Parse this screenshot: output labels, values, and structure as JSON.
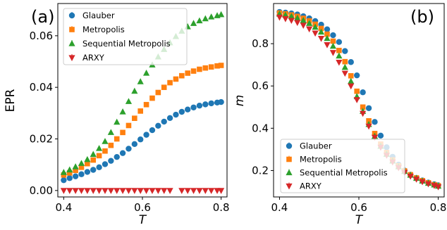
{
  "chart_data": [
    {
      "panel_label": "(a)",
      "type": "scatter",
      "xlabel": "T",
      "ylabel": "EPR",
      "xlim": [
        0.385,
        0.815
      ],
      "ylim": [
        -0.0025,
        0.0725
      ],
      "xticks": [
        0.4,
        0.6,
        0.8
      ],
      "xtick_labels": [
        "0.4",
        "0.6",
        "0.8"
      ],
      "yticks": [
        0.0,
        0.02,
        0.04,
        0.06
      ],
      "ytick_labels": [
        "0.00",
        "0.02",
        "0.04",
        "0.06"
      ],
      "grid": false,
      "legend": "top-left",
      "x": [
        0.4,
        0.415,
        0.43,
        0.445,
        0.46,
        0.475,
        0.49,
        0.505,
        0.52,
        0.535,
        0.55,
        0.565,
        0.58,
        0.595,
        0.61,
        0.625,
        0.64,
        0.655,
        0.67,
        0.685,
        0.7,
        0.715,
        0.73,
        0.745,
        0.76,
        0.775,
        0.79,
        0.8
      ],
      "series": [
        {
          "name": "Glauber",
          "color": "#1f77b4",
          "marker": "circle",
          "values": [
            0.004,
            0.0048,
            0.0055,
            0.0063,
            0.0072,
            0.008,
            0.009,
            0.0102,
            0.0115,
            0.013,
            0.0145,
            0.0162,
            0.018,
            0.0198,
            0.0216,
            0.0234,
            0.0251,
            0.0267,
            0.0281,
            0.0294,
            0.0305,
            0.0314,
            0.0322,
            0.0329,
            0.0334,
            0.0338,
            0.0341,
            0.0343
          ]
        },
        {
          "name": "Metropolis",
          "color": "#ff7f0e",
          "marker": "square",
          "values": [
            0.006,
            0.0068,
            0.0078,
            0.009,
            0.0104,
            0.0118,
            0.0135,
            0.0153,
            0.0175,
            0.02,
            0.0225,
            0.0252,
            0.028,
            0.0308,
            0.0333,
            0.0358,
            0.038,
            0.04,
            0.0418,
            0.0432,
            0.0445,
            0.0455,
            0.0463,
            0.047,
            0.0475,
            0.0479,
            0.0483,
            0.0485
          ]
        },
        {
          "name": "Sequential Metropolis",
          "color": "#2ca02c",
          "marker": "triangle-up",
          "values": [
            0.007,
            0.008,
            0.0092,
            0.0105,
            0.012,
            0.014,
            0.0163,
            0.019,
            0.0225,
            0.0265,
            0.0305,
            0.0345,
            0.0385,
            0.0422,
            0.0455,
            0.0487,
            0.0518,
            0.0547,
            0.0573,
            0.0597,
            0.0618,
            0.0635,
            0.0648,
            0.0658,
            0.0666,
            0.0673,
            0.0678,
            0.0682
          ]
        },
        {
          "name": "ARXY",
          "color": "#d62728",
          "marker": "triangle-down",
          "values": [
            0.0,
            0.0,
            0.0,
            0.0,
            0.0,
            0.0,
            0.0,
            0.0,
            0.0,
            0.0,
            0.0,
            0.0,
            0.0,
            0.0,
            0.0,
            0.0,
            0.0,
            0.0,
            0.0,
            null,
            0.0,
            0.0,
            0.0,
            0.0,
            0.0,
            0.0,
            0.0,
            0.0
          ]
        }
      ]
    },
    {
      "panel_label": "(b)",
      "type": "scatter",
      "xlabel": "T",
      "ylabel": "m",
      "xlim": [
        0.385,
        0.815
      ],
      "ylim": [
        0.075,
        0.99
      ],
      "xticks": [
        0.4,
        0.6,
        0.8
      ],
      "xtick_labels": [
        "0.4",
        "0.6",
        "0.8"
      ],
      "yticks": [
        0.2,
        0.4,
        0.6,
        0.8
      ],
      "ytick_labels": [
        "0.2",
        "0.4",
        "0.6",
        "0.8"
      ],
      "grid": false,
      "legend": "bottom-left",
      "x": [
        0.4,
        0.415,
        0.43,
        0.445,
        0.46,
        0.475,
        0.49,
        0.505,
        0.52,
        0.535,
        0.55,
        0.565,
        0.58,
        0.595,
        0.61,
        0.625,
        0.64,
        0.655,
        0.67,
        0.685,
        0.7,
        0.715,
        0.73,
        0.745,
        0.76,
        0.775,
        0.79,
        0.8
      ],
      "series": [
        {
          "name": "Glauber",
          "color": "#1f77b4",
          "marker": "circle",
          "values": [
            0.95,
            0.947,
            0.943,
            0.938,
            0.93,
            0.92,
            0.907,
            0.89,
            0.868,
            0.84,
            0.808,
            0.765,
            0.713,
            0.65,
            0.57,
            0.495,
            0.43,
            0.365,
            0.31,
            0.265,
            0.228,
            0.2,
            0.18,
            0.165,
            0.153,
            0.143,
            0.135,
            0.13
          ]
        },
        {
          "name": "Metropolis",
          "color": "#ff7f0e",
          "marker": "square",
          "values": [
            0.945,
            0.941,
            0.936,
            0.929,
            0.92,
            0.908,
            0.892,
            0.872,
            0.845,
            0.812,
            0.768,
            0.715,
            0.648,
            0.575,
            0.5,
            0.435,
            0.375,
            0.325,
            0.285,
            0.25,
            0.222,
            0.198,
            0.18,
            0.165,
            0.152,
            0.142,
            0.133,
            0.128
          ]
        },
        {
          "name": "Sequential Metropolis",
          "color": "#2ca02c",
          "marker": "triangle-up",
          "values": [
            0.94,
            0.935,
            0.929,
            0.921,
            0.91,
            0.896,
            0.878,
            0.855,
            0.825,
            0.788,
            0.742,
            0.688,
            0.622,
            0.55,
            0.48,
            0.418,
            0.362,
            0.315,
            0.277,
            0.245,
            0.218,
            0.196,
            0.178,
            0.163,
            0.15,
            0.14,
            0.132,
            0.126
          ]
        },
        {
          "name": "ARXY",
          "color": "#d62728",
          "marker": "triangle-down",
          "values": [
            0.925,
            0.918,
            0.91,
            0.9,
            0.887,
            0.87,
            0.85,
            0.825,
            0.795,
            0.758,
            0.712,
            0.66,
            0.6,
            0.535,
            0.47,
            0.41,
            0.357,
            0.31,
            0.272,
            0.24,
            0.213,
            0.191,
            0.173,
            0.159,
            0.147,
            0.137,
            0.129,
            0.123
          ]
        }
      ]
    }
  ]
}
